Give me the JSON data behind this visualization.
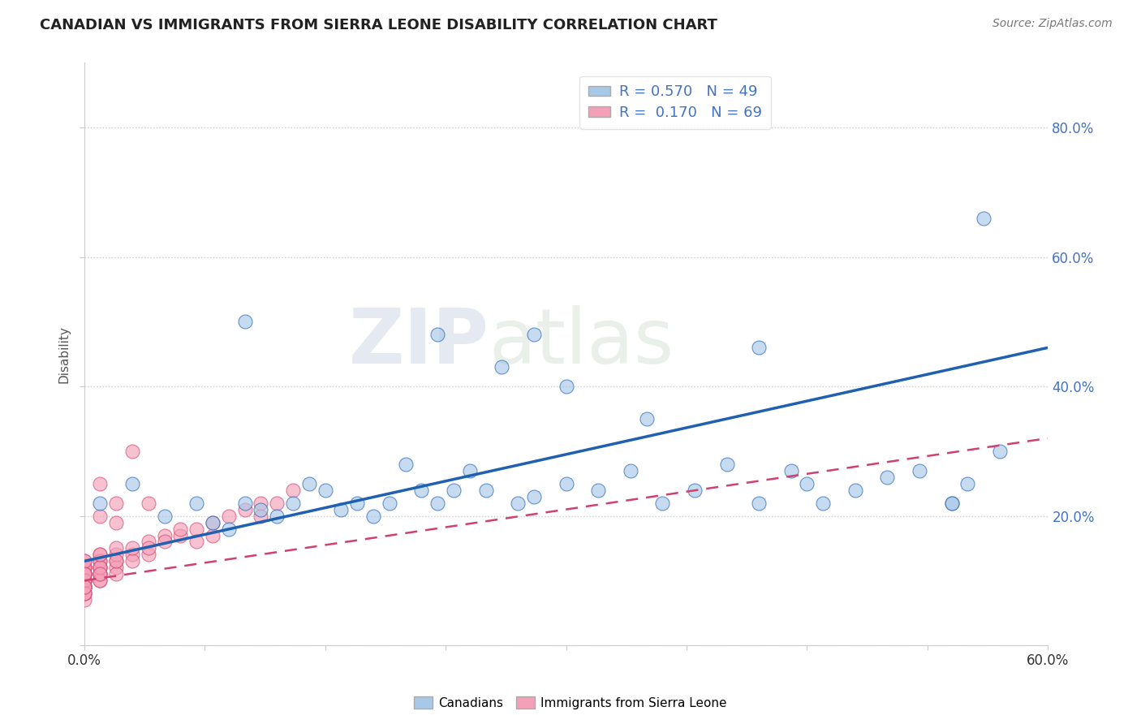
{
  "title": "CANADIAN VS IMMIGRANTS FROM SIERRA LEONE DISABILITY CORRELATION CHART",
  "source": "Source: ZipAtlas.com",
  "ylabel": "Disability",
  "watermark": "ZIPatlas",
  "R_canadian": 0.57,
  "N_canadian": 49,
  "R_sierraleone": 0.17,
  "N_sierraleone": 69,
  "color_canadian": "#a8c8e8",
  "color_sierraleone": "#f4a0b8",
  "color_canadian_line": "#2060b0",
  "color_sierraleone_line": "#d04070",
  "background_color": "#ffffff",
  "xlim": [
    0.0,
    0.6
  ],
  "ylim": [
    0.0,
    0.9
  ],
  "yticks": [
    0.0,
    0.2,
    0.4,
    0.6,
    0.8
  ],
  "ytick_labels": [
    "",
    "20.0%",
    "40.0%",
    "60.0%",
    "80.0%"
  ],
  "blue_line_x0": 0.0,
  "blue_line_y0": 0.13,
  "blue_line_x1": 0.6,
  "blue_line_y1": 0.46,
  "pink_line_x0": 0.0,
  "pink_line_y0": 0.1,
  "pink_line_x1": 0.6,
  "pink_line_y1": 0.32,
  "canadian_x": [
    0.01,
    0.03,
    0.05,
    0.07,
    0.08,
    0.09,
    0.1,
    0.11,
    0.12,
    0.13,
    0.14,
    0.15,
    0.16,
    0.17,
    0.18,
    0.19,
    0.2,
    0.21,
    0.22,
    0.23,
    0.24,
    0.25,
    0.27,
    0.28,
    0.3,
    0.32,
    0.34,
    0.36,
    0.38,
    0.4,
    0.42,
    0.44,
    0.45,
    0.46,
    0.48,
    0.5,
    0.52,
    0.54,
    0.55,
    0.57,
    0.22,
    0.26,
    0.3,
    0.35,
    0.42,
    0.56,
    0.54,
    0.28,
    0.1
  ],
  "canadian_y": [
    0.22,
    0.25,
    0.2,
    0.22,
    0.19,
    0.18,
    0.22,
    0.21,
    0.2,
    0.22,
    0.25,
    0.24,
    0.21,
    0.22,
    0.2,
    0.22,
    0.28,
    0.24,
    0.22,
    0.24,
    0.27,
    0.24,
    0.22,
    0.23,
    0.25,
    0.24,
    0.27,
    0.22,
    0.24,
    0.28,
    0.22,
    0.27,
    0.25,
    0.22,
    0.24,
    0.26,
    0.27,
    0.22,
    0.25,
    0.3,
    0.48,
    0.43,
    0.4,
    0.35,
    0.46,
    0.66,
    0.22,
    0.48,
    0.5
  ],
  "sierraleone_x": [
    0.0,
    0.0,
    0.0,
    0.0,
    0.0,
    0.0,
    0.0,
    0.0,
    0.0,
    0.0,
    0.0,
    0.0,
    0.0,
    0.0,
    0.0,
    0.0,
    0.0,
    0.0,
    0.0,
    0.0,
    0.0,
    0.0,
    0.0,
    0.0,
    0.0,
    0.01,
    0.01,
    0.01,
    0.01,
    0.01,
    0.01,
    0.01,
    0.01,
    0.01,
    0.01,
    0.01,
    0.01,
    0.02,
    0.02,
    0.02,
    0.02,
    0.02,
    0.02,
    0.03,
    0.03,
    0.03,
    0.04,
    0.04,
    0.04,
    0.05,
    0.05,
    0.06,
    0.06,
    0.07,
    0.07,
    0.08,
    0.08,
    0.09,
    0.1,
    0.11,
    0.11,
    0.12,
    0.13,
    0.04,
    0.02,
    0.01,
    0.03,
    0.02,
    0.01
  ],
  "sierraleone_y": [
    0.07,
    0.08,
    0.09,
    0.1,
    0.11,
    0.1,
    0.12,
    0.09,
    0.1,
    0.11,
    0.08,
    0.12,
    0.1,
    0.09,
    0.11,
    0.13,
    0.1,
    0.09,
    0.12,
    0.11,
    0.1,
    0.08,
    0.13,
    0.09,
    0.11,
    0.12,
    0.11,
    0.13,
    0.1,
    0.12,
    0.11,
    0.14,
    0.1,
    0.13,
    0.12,
    0.11,
    0.14,
    0.13,
    0.12,
    0.14,
    0.11,
    0.13,
    0.15,
    0.14,
    0.13,
    0.15,
    0.14,
    0.16,
    0.15,
    0.17,
    0.16,
    0.17,
    0.18,
    0.18,
    0.16,
    0.19,
    0.17,
    0.2,
    0.21,
    0.22,
    0.2,
    0.22,
    0.24,
    0.22,
    0.22,
    0.25,
    0.3,
    0.19,
    0.2
  ]
}
